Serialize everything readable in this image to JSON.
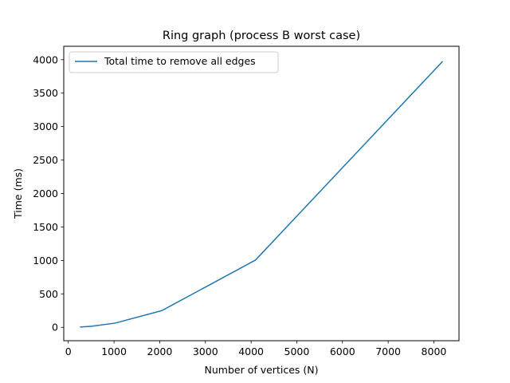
{
  "chart_data": {
    "type": "line",
    "title": "Ring graph (process B worst case)",
    "xlabel": "Number of vertices (N)",
    "ylabel": "Time (ms)",
    "xlim": [
      -100,
      8550
    ],
    "ylim": [
      -200,
      4200
    ],
    "xticks": [
      0,
      1000,
      2000,
      3000,
      4000,
      5000,
      6000,
      7000,
      8000
    ],
    "yticks": [
      0,
      500,
      1000,
      1500,
      2000,
      2500,
      3000,
      3500,
      4000
    ],
    "grid": false,
    "legend_position": "upper-left",
    "series": [
      {
        "name": "Total time to remove all edges",
        "color": "#1f77b4",
        "x": [
          256,
          512,
          1024,
          2048,
          4096,
          8192
        ],
        "y": [
          4,
          16,
          63,
          250,
          1005,
          3975
        ]
      }
    ]
  }
}
